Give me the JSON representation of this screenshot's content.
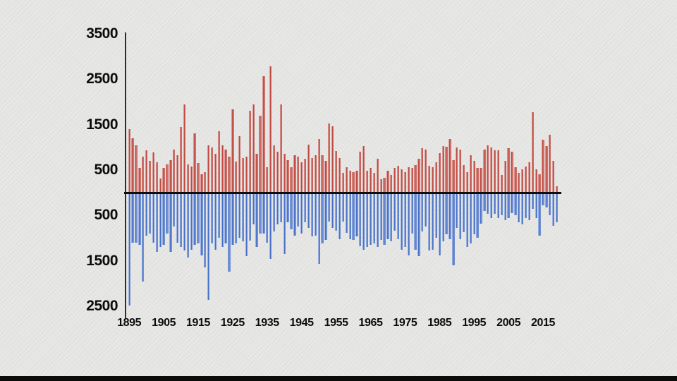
{
  "app": {
    "background_color": "#e5e5e3",
    "bottom_strip_color": "#0b0b0b",
    "axis_color": "#2e2e2e",
    "zero_line_color": "#0e0e0e",
    "label_color": "#0c0c0c"
  },
  "chart_data": {
    "type": "bar",
    "description_of_pixels": "Diverging annual bar chart: red bars extend up from a black zero line, blue bars extend down. No title or legend visible.",
    "x_range": {
      "start_year": 1895,
      "end_year": 2019,
      "step": 1
    },
    "x_axis": {
      "tick_labels": [
        "1895",
        "1905",
        "1915",
        "1925",
        "1935",
        "1945",
        "1955",
        "1965",
        "1975",
        "1985",
        "1995",
        "2005",
        "2015"
      ]
    },
    "y_axis": {
      "tick_labels_above_zero": [
        "3500",
        "2500",
        "1500",
        "500"
      ],
      "tick_labels_below_zero": [
        "500",
        "1500",
        "2500"
      ],
      "tick_values": [
        3500,
        2500,
        1500,
        500,
        -500,
        -1500,
        -2500
      ],
      "ylim": [
        -2600,
        3500
      ],
      "grid": false,
      "zero_line": true
    },
    "legend": {
      "visible": false
    },
    "series": [
      {
        "name": "red-bars-up",
        "color": "#bf4a41",
        "direction": "up",
        "values": [
          1400,
          1200,
          1050,
          550,
          800,
          930,
          700,
          890,
          670,
          320,
          540,
          620,
          710,
          950,
          820,
          1450,
          1950,
          620,
          575,
          1300,
          660,
          410,
          460,
          1050,
          1000,
          850,
          1350,
          1050,
          950,
          800,
          1830,
          680,
          1250,
          770,
          800,
          1810,
          1940,
          850,
          1700,
          2560,
          565,
          2780,
          1050,
          900,
          1940,
          850,
          720,
          565,
          825,
          800,
          670,
          745,
          1055,
          770,
          825,
          1185,
          825,
          695,
          1520,
          1470,
          925,
          770,
          435,
          565,
          490,
          460,
          490,
          900,
          1030,
          490,
          540,
          435,
          745,
          305,
          330,
          490,
          385,
          540,
          590,
          515,
          460,
          565,
          540,
          615,
          745,
          980,
          950,
          590,
          565,
          670,
          875,
          1030,
          1005,
          1185,
          720,
          1000,
          950,
          615,
          450,
          825,
          700,
          550,
          550,
          950,
          1050,
          1000,
          930,
          930,
          385,
          695,
          980,
          900,
          565,
          435,
          515,
          575,
          670,
          1766,
          515,
          400,
          1160,
          1030,
          1280,
          700,
          150
        ]
      },
      {
        "name": "blue-bars-down",
        "color": "#4670c6",
        "direction": "down",
        "values": [
          2480,
          1100,
          1100,
          1150,
          1950,
          950,
          900,
          1100,
          1300,
          1200,
          1150,
          900,
          1300,
          750,
          1100,
          1200,
          1270,
          1430,
          1250,
          1150,
          1120,
          1380,
          1640,
          2350,
          1120,
          1250,
          990,
          1200,
          1120,
          1740,
          1150,
          1120,
          990,
          1070,
          1400,
          1050,
          700,
          1200,
          900,
          900,
          1100,
          1450,
          850,
          700,
          650,
          1350,
          650,
          800,
          950,
          750,
          900,
          650,
          780,
          960,
          940,
          1560,
          1120,
          1040,
          630,
          780,
          830,
          1015,
          630,
          885,
          1015,
          1040,
          960,
          1170,
          1250,
          1200,
          1145,
          1120,
          1200,
          1040,
          1145,
          1015,
          1070,
          835,
          1015,
          1250,
          1200,
          1380,
          900,
          1250,
          1400,
          850,
          750,
          1275,
          1250,
          990,
          1380,
          1070,
          910,
          1015,
          1600,
          780,
          1015,
          860,
          1200,
          1120,
          910,
          990,
          680,
          395,
          470,
          550,
          470,
          550,
          500,
          600,
          550,
          450,
          500,
          650,
          700,
          550,
          600,
          350,
          550,
          940,
          280,
          330,
          500,
          730,
          650
        ]
      }
    ]
  }
}
